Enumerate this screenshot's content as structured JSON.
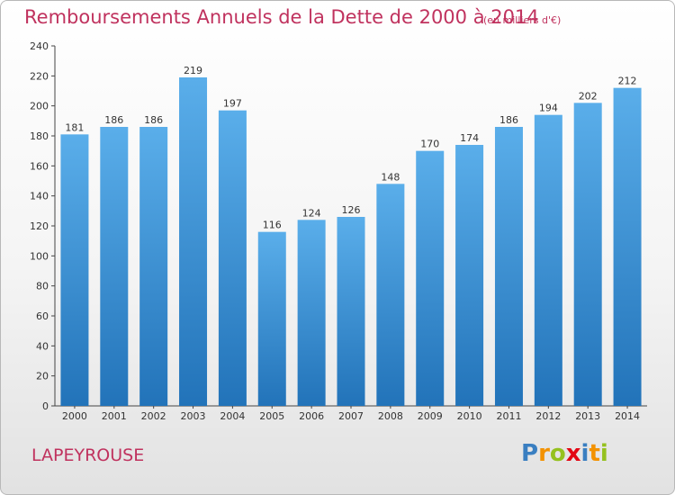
{
  "title": "Remboursements Annuels de la Dette de 2000 à 2014",
  "subtitle": "(en milliers d'€)",
  "commune": "LAPEYROUSE",
  "logo": {
    "text": "Proxiti",
    "letters": [
      "P",
      "r",
      "o",
      "x",
      "i",
      "t",
      "i"
    ],
    "colors": [
      "#3a7fc1",
      "#f39200",
      "#95c11f",
      "#e30613",
      "#3a7fc1",
      "#f39200",
      "#95c11f"
    ]
  },
  "colors": {
    "title": "#c0325e",
    "bar_top": "#5aaeea",
    "bar_bottom": "#2273b9",
    "grid": "#dddddd",
    "axis": "#444444"
  },
  "chart_data": {
    "type": "bar",
    "categories": [
      "2000",
      "2001",
      "2002",
      "2003",
      "2004",
      "2005",
      "2006",
      "2007",
      "2008",
      "2009",
      "2010",
      "2011",
      "2012",
      "2013",
      "2014"
    ],
    "values": [
      181,
      186,
      186,
      219,
      197,
      116,
      124,
      126,
      148,
      170,
      174,
      186,
      194,
      202,
      212
    ],
    "title": "Remboursements Annuels de la Dette de 2000 à 2014",
    "subtitle": "(en milliers d'€)",
    "ylim": [
      0,
      240
    ],
    "yticks": [
      0,
      20,
      40,
      60,
      80,
      100,
      120,
      140,
      160,
      180,
      200,
      220,
      240
    ],
    "grid": false,
    "legend": "none"
  }
}
